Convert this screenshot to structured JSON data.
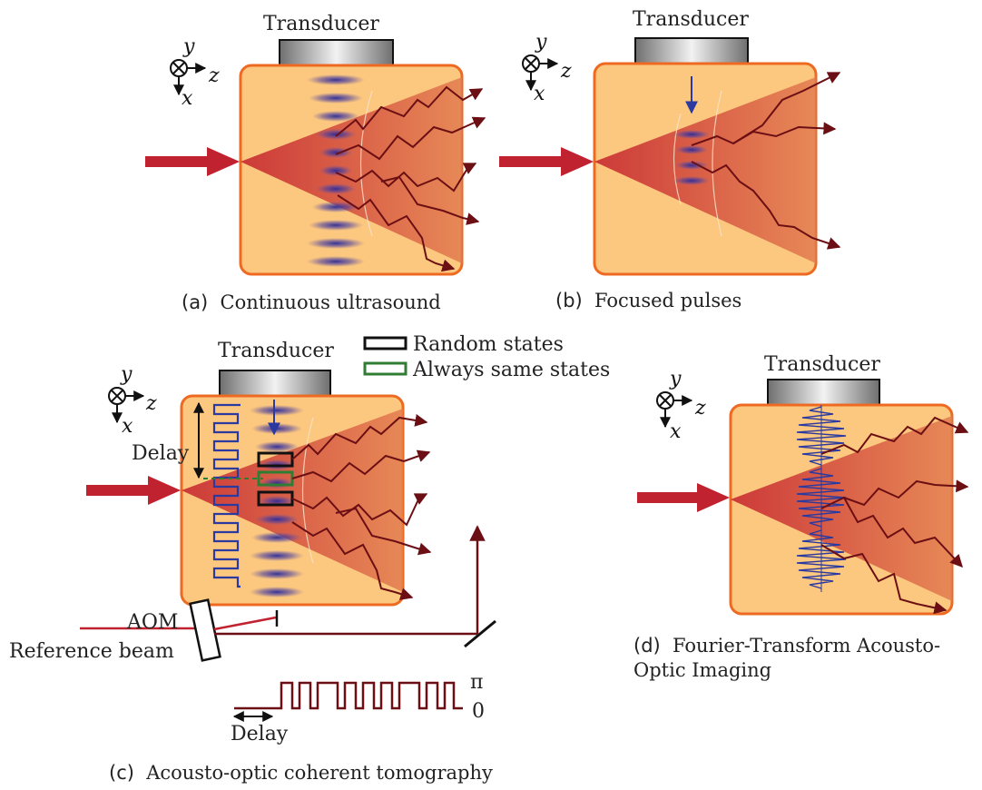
{
  "panels": {
    "a": {
      "transducer": "Transducer",
      "caption_letter": "(a)",
      "caption_text": "Continuous ultrasound"
    },
    "b": {
      "transducer": "Transducer",
      "caption_letter": "(b)",
      "caption_text": "Focused pulses"
    },
    "c": {
      "transducer": "Transducer",
      "delay_label": "Delay",
      "delay_label_bottom": "Delay",
      "aom_label": "AOM",
      "reference_label": "Reference beam",
      "pi_label": "π",
      "zero_label": "0",
      "caption_letter": "(c)",
      "caption_text": "Acousto-optic coherent tomography"
    },
    "d": {
      "transducer": "Transducer",
      "caption_letter": "(d)",
      "caption_line1": "Fourier-Transform Acousto-",
      "caption_line2": "Optic Imaging"
    }
  },
  "legend": {
    "random": "Random states",
    "same": "Always same states",
    "random_color": "#111111",
    "same_color": "#2f7d32"
  },
  "axes": {
    "y": "y",
    "z": "z",
    "x": "x"
  },
  "colors": {
    "medium_fill": "#fcc77e",
    "medium_stroke": "#ee6a22",
    "beam": "#c0222f",
    "scatter": "#6b0f14",
    "ultrasound": "#3a3a9a"
  }
}
